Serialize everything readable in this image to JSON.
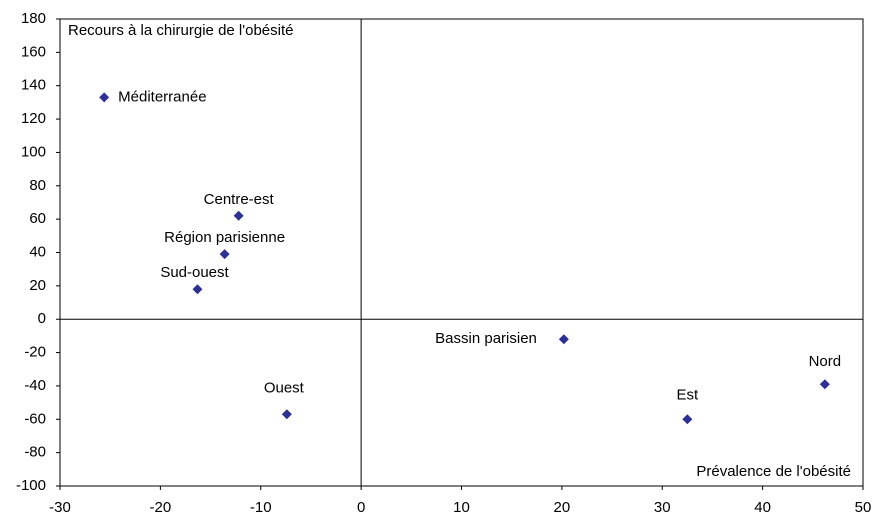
{
  "chart_data": {
    "type": "scatter",
    "y_label": "Recours à la chirurgie de l'obésité",
    "x_label": "Prévalence de l'obésité",
    "categories": [
      "Méditerranée",
      "Centre-est",
      "Région parisienne",
      "Sud-ouest",
      "Ouest",
      "Bassin parisien",
      "Est",
      "Nord"
    ],
    "x": [
      -25.6,
      -12.2,
      -13.6,
      -16.3,
      -7.4,
      20.2,
      32.5,
      46.2
    ],
    "values": [
      133,
      62,
      39,
      18,
      -57,
      -12,
      -60,
      -39
    ],
    "color": "#2e3192",
    "xlim": [
      -30,
      50
    ],
    "ylim": [
      -100,
      180
    ],
    "xticks": [
      -30,
      -20,
      -10,
      0,
      10,
      20,
      30,
      40,
      50
    ],
    "yticks": [
      -100,
      -80,
      -60,
      -40,
      -20,
      0,
      20,
      40,
      60,
      80,
      100,
      120,
      140,
      160,
      180
    ]
  }
}
